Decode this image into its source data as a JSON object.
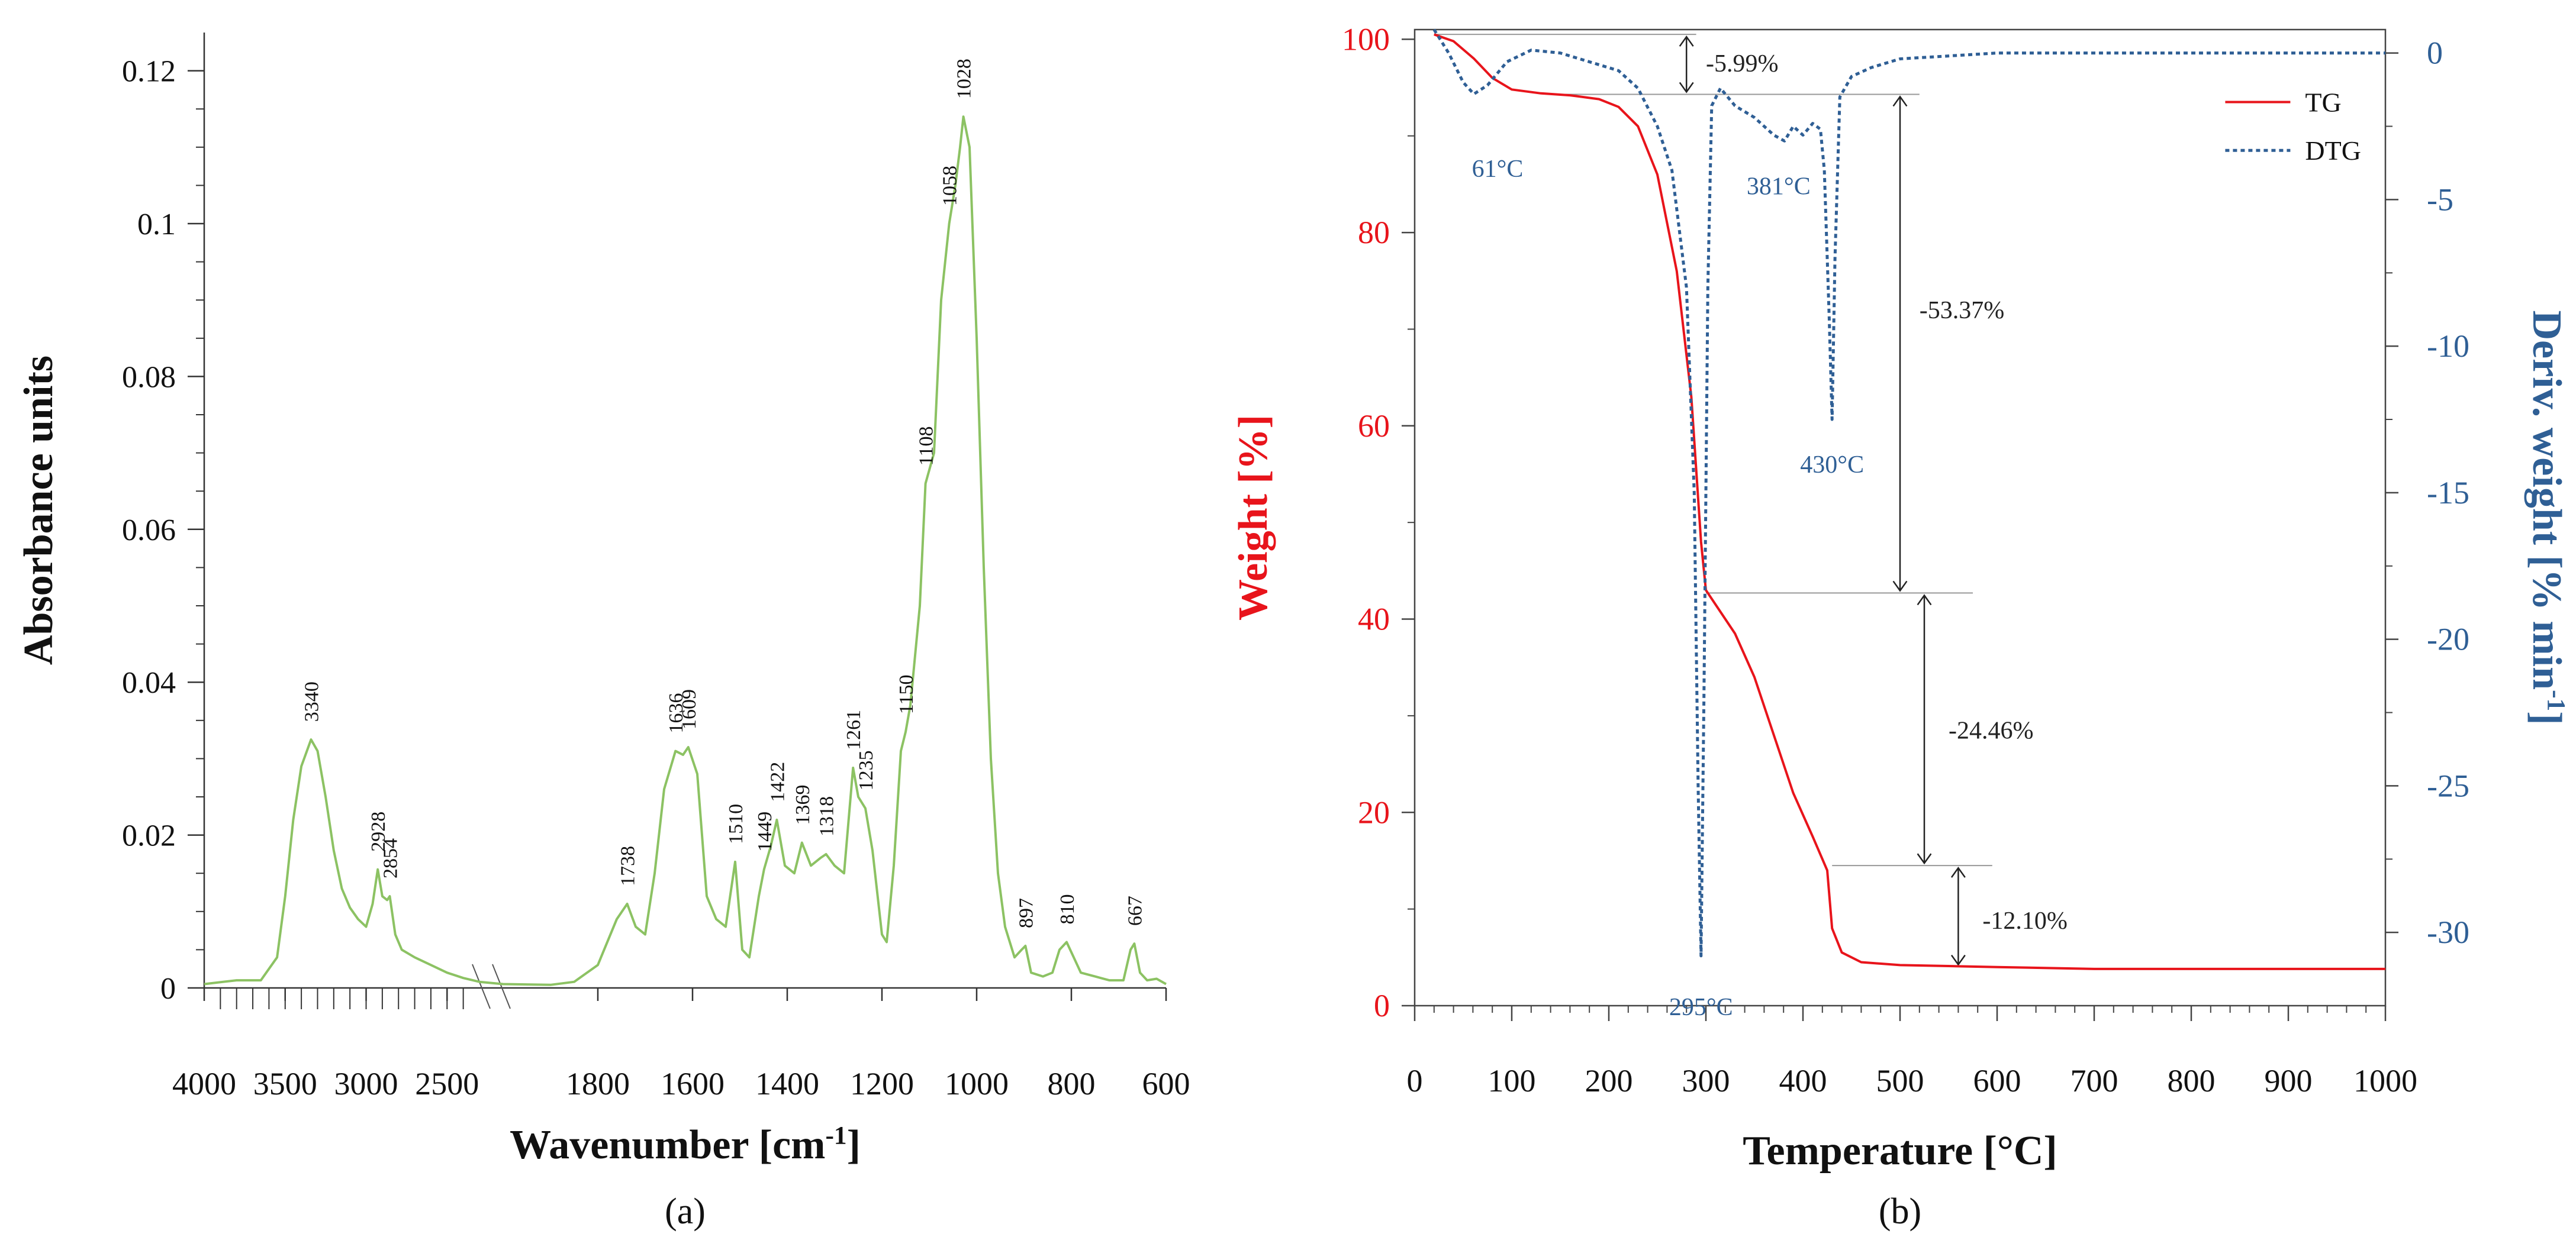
{
  "figure": {
    "panel_a_label": "(a)",
    "panel_b_label": "(b)"
  },
  "chart_data": [
    {
      "panel": "a",
      "type": "line",
      "title": "",
      "xlabel": "Wavenumber [cm-1]",
      "ylabel": "Absorbance units",
      "x_reversed": true,
      "axis_break_between": [
        2300,
        2000
      ],
      "xlim": [
        4000,
        600
      ],
      "ylim": [
        0,
        0.125
      ],
      "x_ticks": [
        4000,
        3500,
        3000,
        2500,
        1800,
        1600,
        1400,
        1200,
        1000,
        800,
        600
      ],
      "x_tick_labels": [
        "4000",
        "3500",
        "3000",
        "2500",
        "1800",
        "1600",
        "1400",
        "1200",
        "1000",
        "800",
        "600"
      ],
      "y_ticks": [
        0,
        0.02,
        0.04,
        0.06,
        0.08,
        0.1,
        0.12
      ],
      "y_tick_labels": [
        "0",
        "0.02",
        "0.04",
        "0.06",
        "0.08",
        "0.1",
        "0.12"
      ],
      "colors": {
        "spectrum": "#8cc263",
        "axis": "#333333"
      },
      "series": [
        {
          "name": "FTIR spectrum",
          "points": [
            [
              4000,
              0.0005
            ],
            [
              3800,
              0.001
            ],
            [
              3650,
              0.001
            ],
            [
              3550,
              0.004
            ],
            [
              3500,
              0.012
            ],
            [
              3450,
              0.022
            ],
            [
              3400,
              0.029
            ],
            [
              3340,
              0.0325
            ],
            [
              3300,
              0.031
            ],
            [
              3250,
              0.025
            ],
            [
              3200,
              0.018
            ],
            [
              3150,
              0.013
            ],
            [
              3100,
              0.0105
            ],
            [
              3050,
              0.009
            ],
            [
              3000,
              0.008
            ],
            [
              2960,
              0.011
            ],
            [
              2928,
              0.0155
            ],
            [
              2900,
              0.012
            ],
            [
              2870,
              0.0115
            ],
            [
              2854,
              0.012
            ],
            [
              2820,
              0.007
            ],
            [
              2780,
              0.005
            ],
            [
              2700,
              0.004
            ],
            [
              2600,
              0.003
            ],
            [
              2500,
              0.002
            ],
            [
              2400,
              0.0013
            ],
            [
              2300,
              0.0008
            ],
            [
              2000,
              0.0005
            ],
            [
              1900,
              0.0004
            ],
            [
              1850,
              0.0008
            ],
            [
              1800,
              0.003
            ],
            [
              1760,
              0.009
            ],
            [
              1738,
              0.011
            ],
            [
              1720,
              0.008
            ],
            [
              1700,
              0.007
            ],
            [
              1680,
              0.015
            ],
            [
              1660,
              0.026
            ],
            [
              1636,
              0.031
            ],
            [
              1620,
              0.0305
            ],
            [
              1609,
              0.0315
            ],
            [
              1590,
              0.028
            ],
            [
              1570,
              0.012
            ],
            [
              1550,
              0.009
            ],
            [
              1530,
              0.008
            ],
            [
              1510,
              0.0165
            ],
            [
              1495,
              0.005
            ],
            [
              1480,
              0.004
            ],
            [
              1460,
              0.012
            ],
            [
              1449,
              0.0155
            ],
            [
              1435,
              0.0185
            ],
            [
              1422,
              0.022
            ],
            [
              1405,
              0.016
            ],
            [
              1385,
              0.015
            ],
            [
              1369,
              0.019
            ],
            [
              1350,
              0.016
            ],
            [
              1330,
              0.017
            ],
            [
              1318,
              0.0175
            ],
            [
              1300,
              0.016
            ],
            [
              1280,
              0.015
            ],
            [
              1261,
              0.0288
            ],
            [
              1250,
              0.025
            ],
            [
              1235,
              0.0235
            ],
            [
              1220,
              0.018
            ],
            [
              1200,
              0.007
            ],
            [
              1190,
              0.006
            ],
            [
              1175,
              0.016
            ],
            [
              1160,
              0.031
            ],
            [
              1150,
              0.0335
            ],
            [
              1140,
              0.037
            ],
            [
              1120,
              0.05
            ],
            [
              1108,
              0.066
            ],
            [
              1090,
              0.07
            ],
            [
              1075,
              0.09
            ],
            [
              1058,
              0.1
            ],
            [
              1045,
              0.105
            ],
            [
              1035,
              0.11
            ],
            [
              1028,
              0.114
            ],
            [
              1015,
              0.11
            ],
            [
              1000,
              0.085
            ],
            [
              985,
              0.055
            ],
            [
              970,
              0.03
            ],
            [
              955,
              0.015
            ],
            [
              940,
              0.008
            ],
            [
              920,
              0.004
            ],
            [
              905,
              0.005
            ],
            [
              897,
              0.0055
            ],
            [
              885,
              0.002
            ],
            [
              860,
              0.0015
            ],
            [
              840,
              0.002
            ],
            [
              825,
              0.005
            ],
            [
              810,
              0.006
            ],
            [
              795,
              0.004
            ],
            [
              780,
              0.002
            ],
            [
              750,
              0.0015
            ],
            [
              720,
              0.001
            ],
            [
              690,
              0.001
            ],
            [
              675,
              0.005
            ],
            [
              667,
              0.0058
            ],
            [
              655,
              0.002
            ],
            [
              640,
              0.001
            ],
            [
              620,
              0.0012
            ],
            [
              600,
              0.0005
            ]
          ]
        }
      ],
      "annotations": [
        {
          "label": "3340",
          "x": 3340,
          "y": 0.0325
        },
        {
          "label": "2928",
          "x": 2928,
          "y": 0.0155
        },
        {
          "label": "2854",
          "x": 2854,
          "y": 0.012
        },
        {
          "label": "1738",
          "x": 1738,
          "y": 0.011
        },
        {
          "label": "1636",
          "x": 1636,
          "y": 0.031
        },
        {
          "label": "1609",
          "x": 1609,
          "y": 0.0315
        },
        {
          "label": "1510",
          "x": 1510,
          "y": 0.0165
        },
        {
          "label": "1449",
          "x": 1449,
          "y": 0.0155
        },
        {
          "label": "1422",
          "x": 1422,
          "y": 0.022
        },
        {
          "label": "1369",
          "x": 1369,
          "y": 0.019
        },
        {
          "label": "1318",
          "x": 1318,
          "y": 0.0175
        },
        {
          "label": "1261",
          "x": 1261,
          "y": 0.0288
        },
        {
          "label": "1235",
          "x": 1235,
          "y": 0.0235
        },
        {
          "label": "1150",
          "x": 1150,
          "y": 0.0335
        },
        {
          "label": "1108",
          "x": 1108,
          "y": 0.066
        },
        {
          "label": "1058",
          "x": 1058,
          "y": 0.1
        },
        {
          "label": "1028",
          "x": 1028,
          "y": 0.114
        },
        {
          "label": "897",
          "x": 897,
          "y": 0.0055
        },
        {
          "label": "810",
          "x": 810,
          "y": 0.006
        },
        {
          "label": "667",
          "x": 667,
          "y": 0.0058
        }
      ]
    },
    {
      "panel": "b",
      "type": "line",
      "title": "",
      "xlabel": "Temperature [°C]",
      "ylabel": "Weight [%]",
      "ylabel_right": "Deriv. weight [% min-1]",
      "xlim": [
        0,
        1000
      ],
      "ylim": [
        0,
        101
      ],
      "ylim_right": [
        -32.5,
        0.8
      ],
      "x_ticks": [
        0,
        100,
        200,
        300,
        400,
        500,
        600,
        700,
        800,
        900,
        1000
      ],
      "x_tick_labels": [
        "0",
        "100",
        "200",
        "300",
        "400",
        "500",
        "600",
        "700",
        "800",
        "900",
        "1000"
      ],
      "y_ticks": [
        0,
        20,
        40,
        60,
        80,
        100
      ],
      "y_tick_labels": [
        "0",
        "20",
        "40",
        "60",
        "80",
        "100"
      ],
      "y_right_ticks": [
        0,
        -5,
        -10,
        -15,
        -20,
        -25,
        -30
      ],
      "y_right_tick_labels": [
        "0",
        "-5",
        "-10",
        "-15",
        "-20",
        "-25",
        "-30"
      ],
      "legend": {
        "position": "top-right",
        "entries": [
          "TG",
          "DTG"
        ]
      },
      "colors": {
        "tg": "#e8141b",
        "dtg": "#2f5f95",
        "left_axis": "#e8141b",
        "right_axis": "#2f5f95",
        "guide": "#999999",
        "annotation_text": "#222222"
      },
      "series": [
        {
          "name": "TG",
          "axis": "left",
          "points": [
            [
              20,
              100.5
            ],
            [
              40,
              99.8
            ],
            [
              61,
              98
            ],
            [
              80,
              96
            ],
            [
              100,
              94.8
            ],
            [
              130,
              94.4
            ],
            [
              160,
              94.2
            ],
            [
              190,
              93.8
            ],
            [
              210,
              93
            ],
            [
              230,
              91
            ],
            [
              250,
              86
            ],
            [
              270,
              76
            ],
            [
              285,
              63
            ],
            [
              295,
              48
            ],
            [
              300,
              43
            ],
            [
              310,
              41.5
            ],
            [
              330,
              38.5
            ],
            [
              350,
              34
            ],
            [
              370,
              28
            ],
            [
              390,
              22
            ],
            [
              410,
              17.5
            ],
            [
              425,
              14
            ],
            [
              430,
              8
            ],
            [
              440,
              5.5
            ],
            [
              460,
              4.5
            ],
            [
              500,
              4.2
            ],
            [
              550,
              4.1
            ],
            [
              600,
              4
            ],
            [
              700,
              3.8
            ],
            [
              800,
              3.8
            ],
            [
              900,
              3.8
            ],
            [
              1000,
              3.8
            ]
          ]
        },
        {
          "name": "DTG",
          "axis": "right",
          "style": "dotted",
          "points": [
            [
              20,
              0.8
            ],
            [
              35,
              0
            ],
            [
              50,
              -1
            ],
            [
              61,
              -1.4
            ],
            [
              75,
              -1.1
            ],
            [
              95,
              -0.3
            ],
            [
              120,
              0.1
            ],
            [
              150,
              0
            ],
            [
              180,
              -0.3
            ],
            [
              210,
              -0.6
            ],
            [
              230,
              -1.2
            ],
            [
              250,
              -2.5
            ],
            [
              265,
              -4
            ],
            [
              280,
              -8
            ],
            [
              288,
              -15
            ],
            [
              292,
              -25
            ],
            [
              295,
              -30.8
            ],
            [
              298,
              -22
            ],
            [
              302,
              -8
            ],
            [
              306,
              -1.8
            ],
            [
              315,
              -1.2
            ],
            [
              330,
              -1.8
            ],
            [
              350,
              -2.2
            ],
            [
              370,
              -2.8
            ],
            [
              381,
              -3
            ],
            [
              390,
              -2.5
            ],
            [
              400,
              -2.8
            ],
            [
              410,
              -2.4
            ],
            [
              418,
              -2.6
            ],
            [
              422,
              -4
            ],
            [
              427,
              -9
            ],
            [
              430,
              -12.5
            ],
            [
              433,
              -7
            ],
            [
              438,
              -1.5
            ],
            [
              450,
              -0.8
            ],
            [
              470,
              -0.5
            ],
            [
              500,
              -0.2
            ],
            [
              550,
              -0.1
            ],
            [
              600,
              0
            ],
            [
              700,
              0
            ],
            [
              800,
              0
            ],
            [
              900,
              0
            ],
            [
              1000,
              0
            ]
          ]
        }
      ],
      "peak_labels": [
        {
          "label": "61°C",
          "x": 61,
          "y": -1.4
        },
        {
          "label": "295°C",
          "x": 295,
          "y": -30.8
        },
        {
          "label": "381°C",
          "x": 381,
          "y": -3
        },
        {
          "label": "430°C",
          "x": 430,
          "y": -12.5
        }
      ],
      "mass_loss_steps": [
        {
          "label": "-5.99%",
          "from": 100.5,
          "to": 94.3
        },
        {
          "label": "-53.37%",
          "from": 94.3,
          "to": 42.7
        },
        {
          "label": "-24.46%",
          "from": 42.7,
          "to": 14.5
        },
        {
          "label": "-12.10%",
          "from": 14.5,
          "to": 4
        }
      ]
    }
  ]
}
